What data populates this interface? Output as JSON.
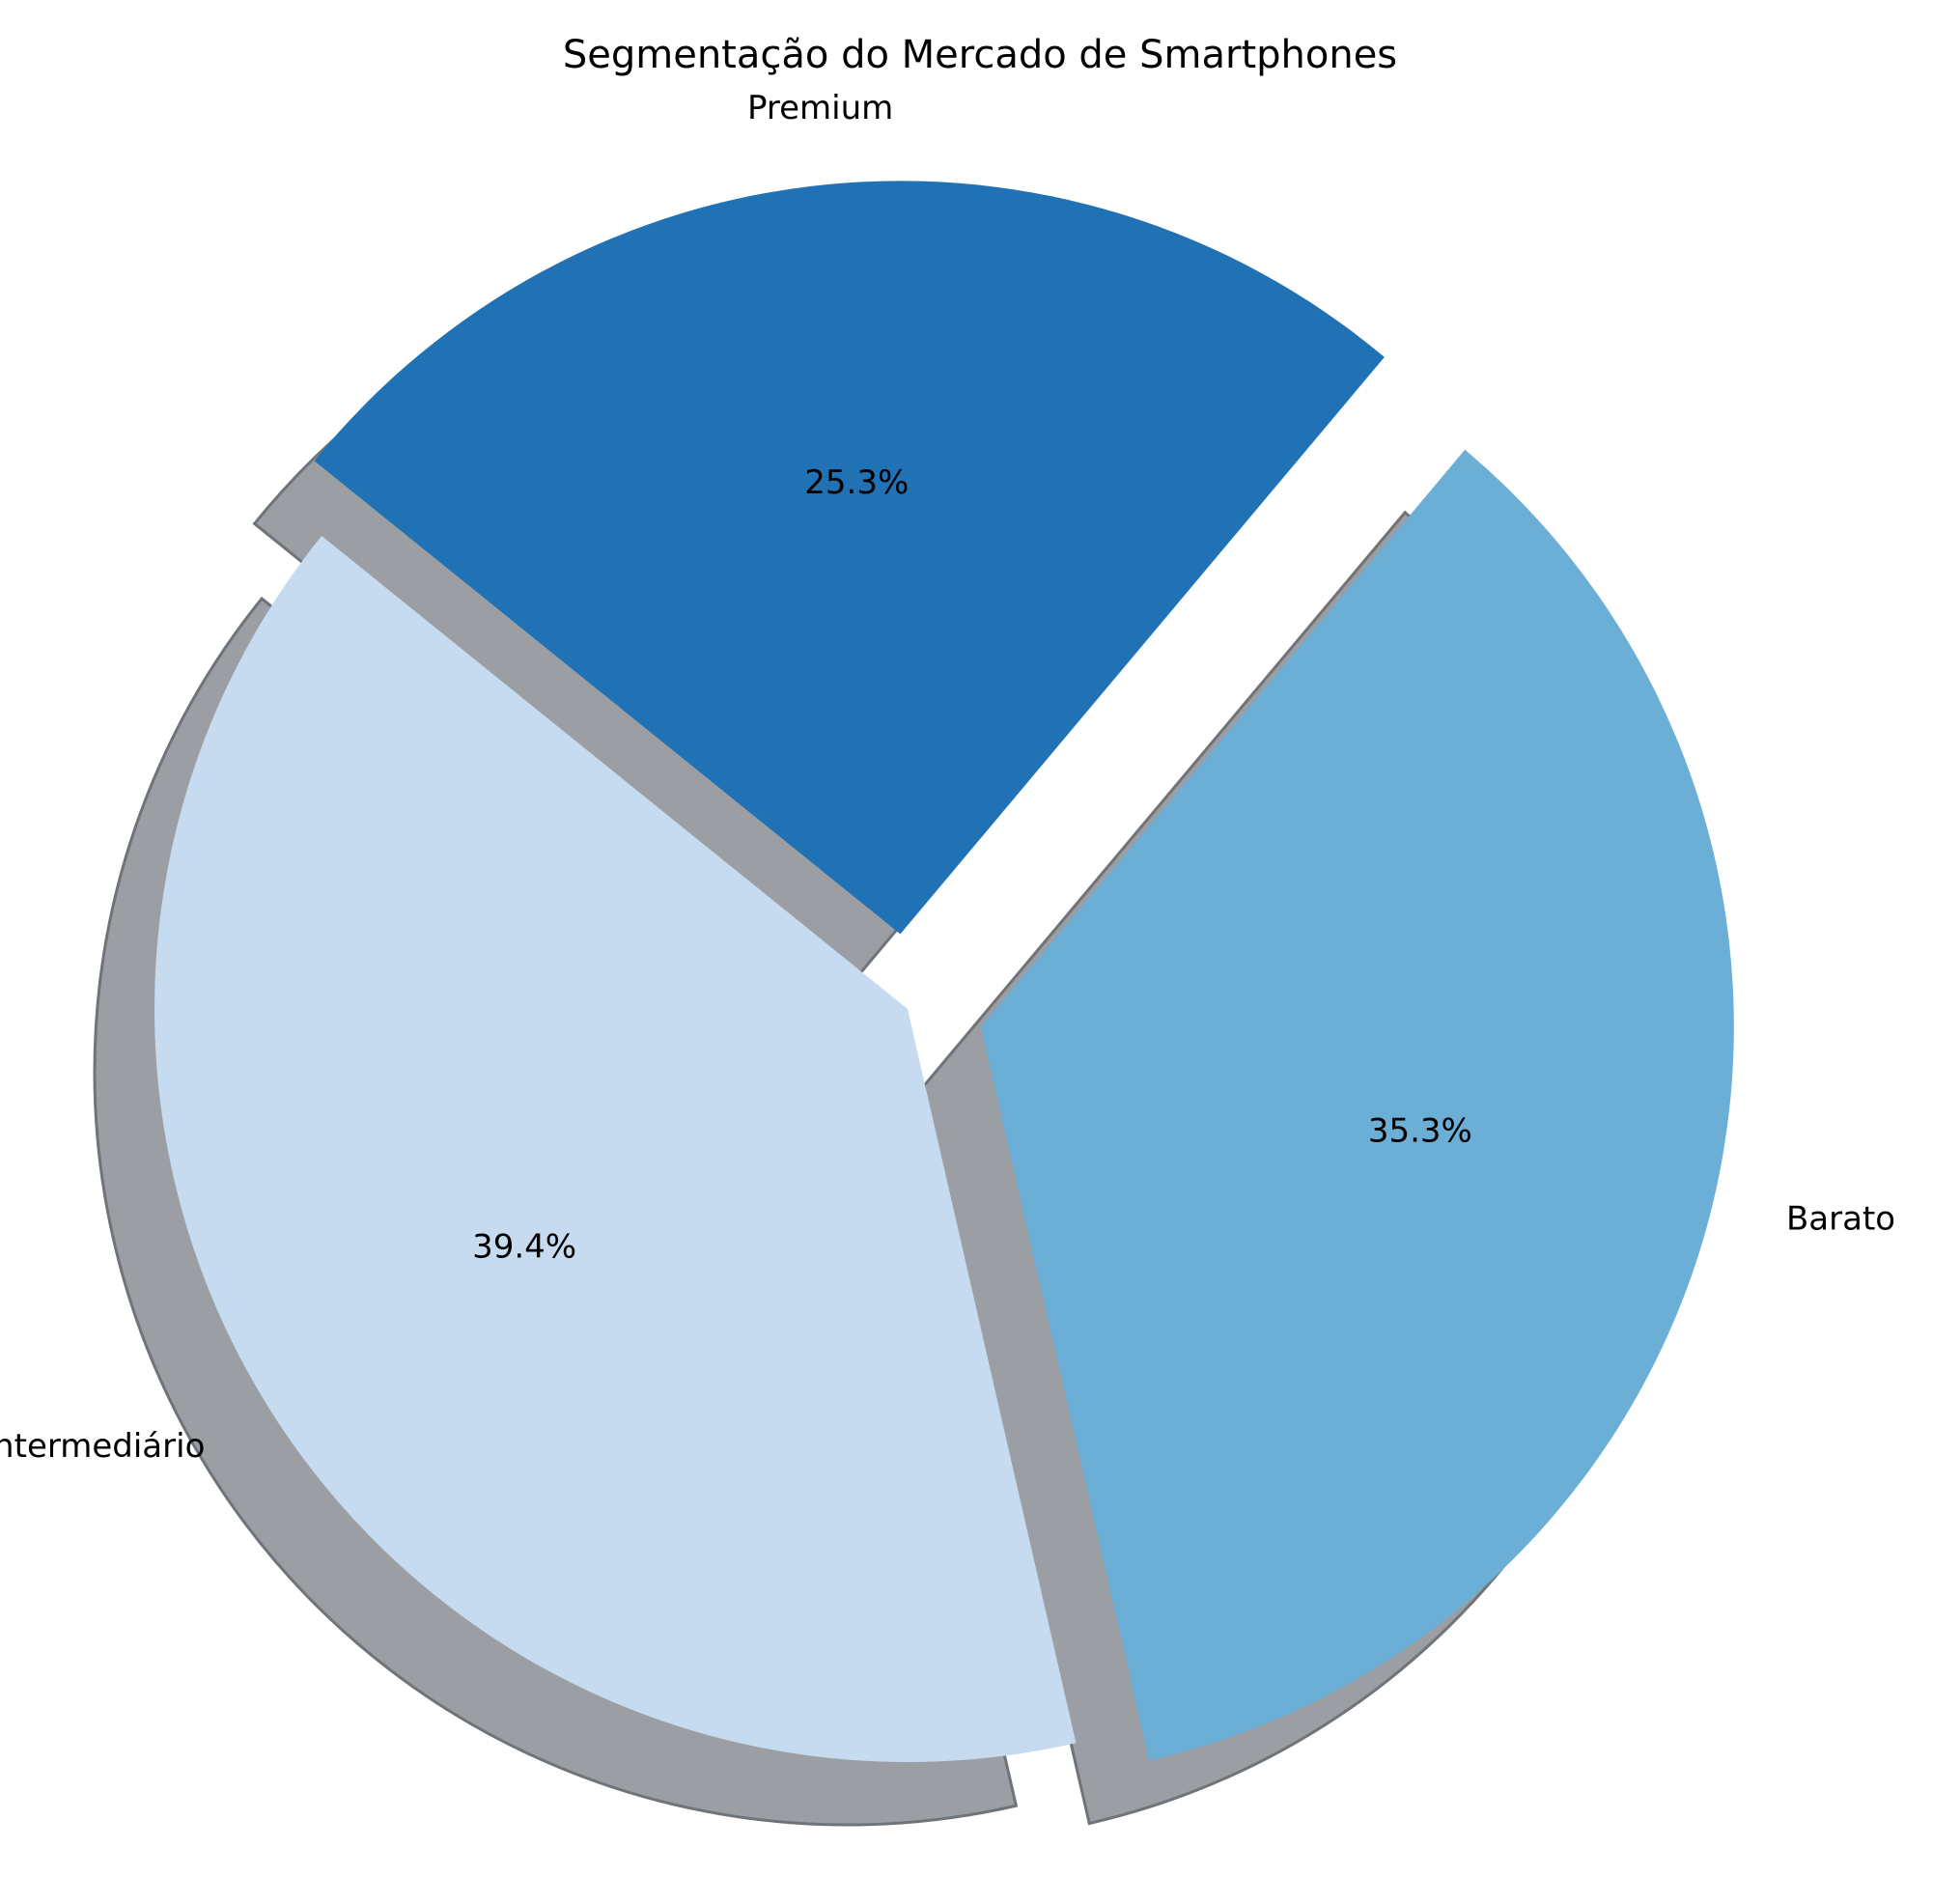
{
  "chart_data": {
    "type": "pie",
    "title": "Segmentação do Mercado de Smartphones",
    "slices": [
      {
        "label": "Premium",
        "value": 25.3,
        "pct_label": "25.3%",
        "color": "#2171b5",
        "explode": 0.1
      },
      {
        "label": "Intermediário",
        "value": 39.4,
        "pct_label": "39.4%",
        "color": "#c6dbef",
        "explode": 0.0
      },
      {
        "label": "Barato",
        "value": 35.3,
        "pct_label": "35.3%",
        "color": "#6baed6",
        "explode": 0.1
      }
    ],
    "start_angle_deg": 50,
    "direction": "counterclockwise",
    "shadow": true,
    "shadow_color": "#9b9fa3",
    "legend": "none"
  }
}
